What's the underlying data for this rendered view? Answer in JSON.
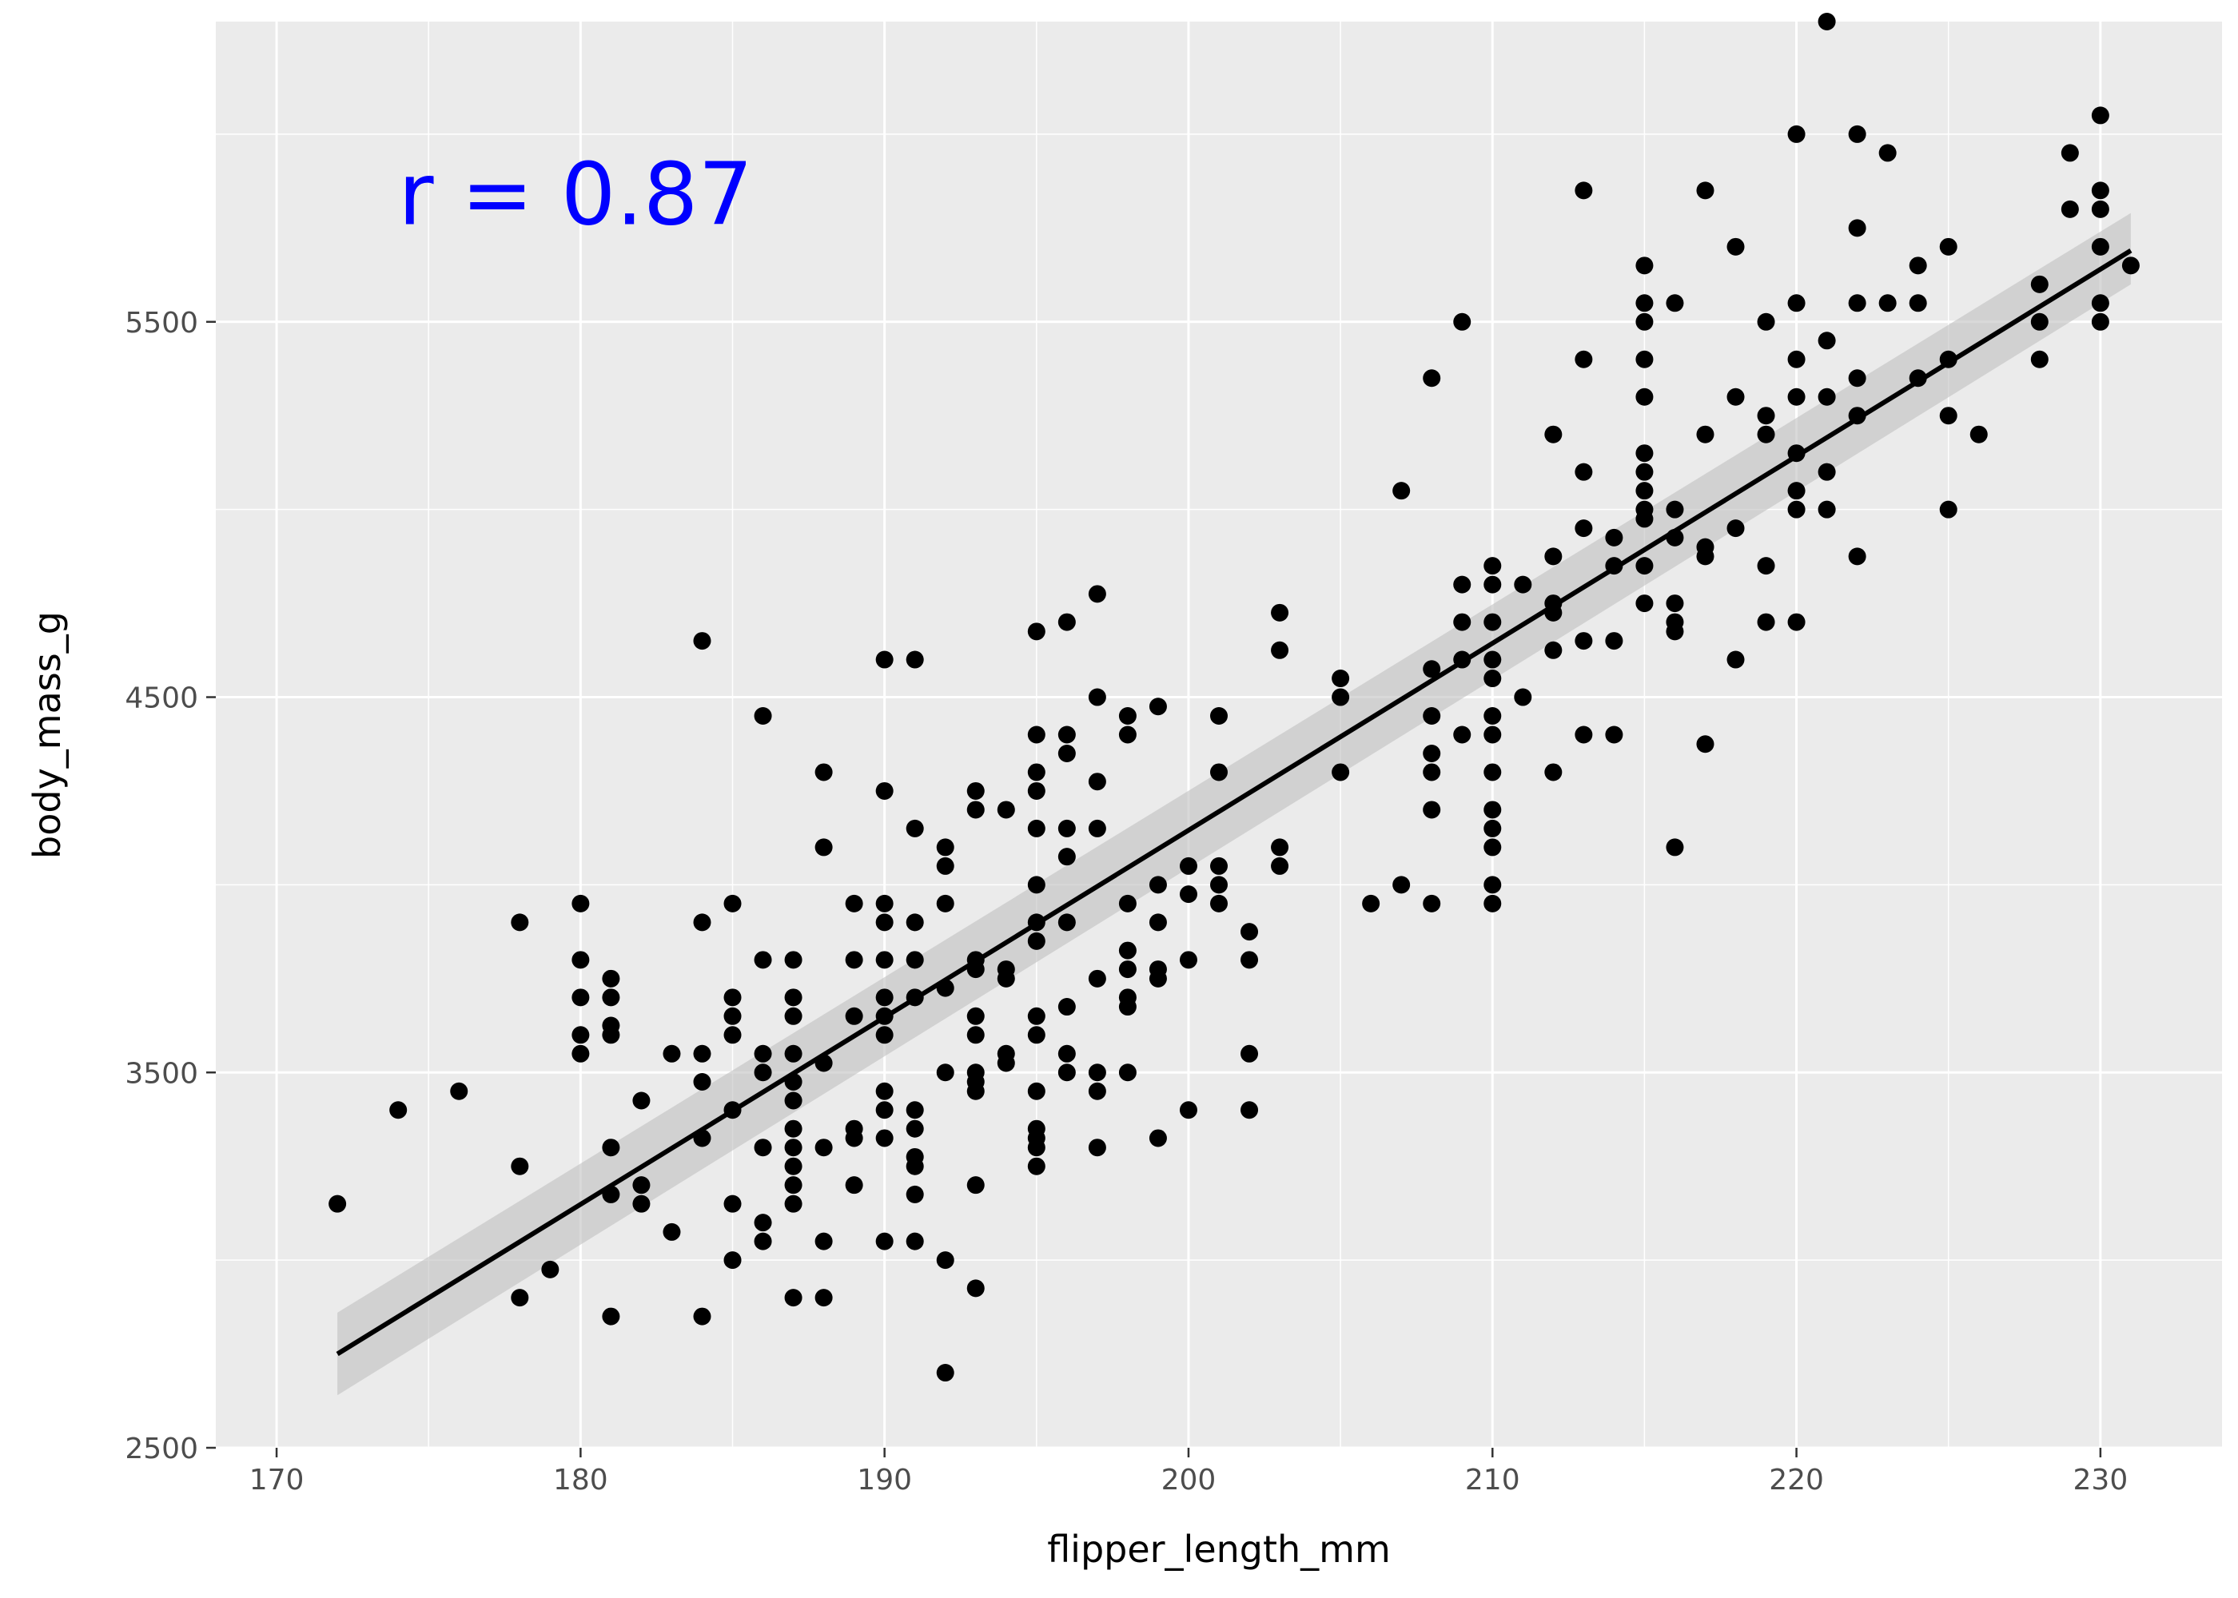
{
  "chart_data": {
    "type": "scatter",
    "xlabel": "flipper_length_mm",
    "ylabel": "body_mass_g",
    "xlim": [
      168,
      234
    ],
    "ylim": [
      2500,
      6300
    ],
    "x_ticks": [
      170,
      180,
      190,
      200,
      210,
      220,
      230
    ],
    "y_ticks": [
      2500,
      3500,
      4500,
      5500
    ],
    "x_tick_labels": [
      "170",
      "180",
      "190",
      "200",
      "210",
      "220",
      "230"
    ],
    "y_tick_labels": [
      "2500",
      "3500",
      "4500",
      "5500"
    ],
    "grid": true,
    "background": "#EBEBEB",
    "point_color": "#000000",
    "annotation": {
      "text": "r = 0.87",
      "color": "#0000FF",
      "x": 174,
      "y": 5760
    },
    "regression": {
      "method": "linear",
      "x_range": [
        172,
        231
      ],
      "y_at_start": 2750,
      "y_at_end": 5690,
      "band_lower_start": 2640,
      "band_upper_start": 2860,
      "band_lower_end": 5600,
      "band_upper_end": 5790,
      "line_color": "#000000",
      "band_color": "#BFBFBF"
    },
    "points": [
      [
        172,
        3150
      ],
      [
        174,
        3400
      ],
      [
        176,
        3450
      ],
      [
        178,
        3250
      ],
      [
        178,
        2900
      ],
      [
        178,
        3900
      ],
      [
        179,
        2975
      ],
      [
        180,
        3950
      ],
      [
        180,
        3800
      ],
      [
        180,
        3700
      ],
      [
        180,
        3600
      ],
      [
        180,
        3550
      ],
      [
        181,
        3300
      ],
      [
        181,
        3175
      ],
      [
        181,
        2850
      ],
      [
        181,
        3625
      ],
      [
        181,
        3600
      ],
      [
        181,
        3700
      ],
      [
        181,
        3750
      ],
      [
        182,
        3200
      ],
      [
        182,
        3150
      ],
      [
        182,
        3425
      ],
      [
        183,
        3075
      ],
      [
        183,
        3550
      ],
      [
        184,
        3325
      ],
      [
        184,
        2850
      ],
      [
        184,
        4650
      ],
      [
        184,
        3900
      ],
      [
        184,
        3550
      ],
      [
        184,
        3475
      ],
      [
        185,
        3700
      ],
      [
        185,
        3650
      ],
      [
        185,
        3600
      ],
      [
        185,
        3950
      ],
      [
        185,
        3400
      ],
      [
        185,
        3150
      ],
      [
        185,
        3000
      ],
      [
        186,
        3100
      ],
      [
        186,
        3050
      ],
      [
        186,
        3300
      ],
      [
        186,
        3500
      ],
      [
        186,
        3550
      ],
      [
        186,
        4450
      ],
      [
        186,
        3800
      ],
      [
        187,
        3800
      ],
      [
        187,
        3700
      ],
      [
        187,
        3650
      ],
      [
        187,
        3550
      ],
      [
        187,
        3475
      ],
      [
        187,
        3425
      ],
      [
        187,
        3350
      ],
      [
        187,
        3300
      ],
      [
        187,
        3250
      ],
      [
        187,
        3200
      ],
      [
        187,
        3150
      ],
      [
        187,
        2900
      ],
      [
        188,
        3300
      ],
      [
        188,
        4300
      ],
      [
        188,
        4100
      ],
      [
        188,
        3525
      ],
      [
        188,
        3050
      ],
      [
        188,
        2900
      ],
      [
        189,
        3950
      ],
      [
        189,
        3800
      ],
      [
        189,
        3650
      ],
      [
        189,
        3350
      ],
      [
        189,
        3325
      ],
      [
        189,
        3200
      ],
      [
        190,
        4600
      ],
      [
        190,
        4250
      ],
      [
        190,
        3950
      ],
      [
        190,
        3900
      ],
      [
        190,
        3800
      ],
      [
        190,
        3700
      ],
      [
        190,
        3650
      ],
      [
        190,
        3600
      ],
      [
        190,
        3450
      ],
      [
        190,
        3400
      ],
      [
        190,
        3325
      ],
      [
        190,
        3050
      ],
      [
        191,
        4600
      ],
      [
        191,
        4150
      ],
      [
        191,
        3900
      ],
      [
        191,
        3800
      ],
      [
        191,
        3700
      ],
      [
        191,
        3400
      ],
      [
        191,
        3350
      ],
      [
        191,
        3275
      ],
      [
        191,
        3250
      ],
      [
        191,
        3175
      ],
      [
        191,
        3050
      ],
      [
        192,
        4100
      ],
      [
        192,
        4050
      ],
      [
        192,
        3950
      ],
      [
        192,
        3725
      ],
      [
        192,
        3500
      ],
      [
        192,
        3000
      ],
      [
        192,
        2700
      ],
      [
        193,
        4250
      ],
      [
        193,
        4200
      ],
      [
        193,
        3800
      ],
      [
        193,
        3775
      ],
      [
        193,
        3650
      ],
      [
        193,
        3600
      ],
      [
        193,
        3500
      ],
      [
        193,
        3475
      ],
      [
        193,
        3450
      ],
      [
        193,
        3200
      ],
      [
        193,
        2925
      ],
      [
        194,
        4200
      ],
      [
        194,
        3775
      ],
      [
        194,
        3750
      ],
      [
        194,
        3550
      ],
      [
        194,
        3525
      ],
      [
        195,
        4675
      ],
      [
        195,
        4400
      ],
      [
        195,
        4300
      ],
      [
        195,
        4250
      ],
      [
        195,
        4150
      ],
      [
        195,
        4000
      ],
      [
        195,
        3900
      ],
      [
        195,
        3850
      ],
      [
        195,
        3650
      ],
      [
        195,
        3600
      ],
      [
        195,
        3450
      ],
      [
        195,
        3350
      ],
      [
        195,
        3325
      ],
      [
        195,
        3300
      ],
      [
        195,
        3250
      ],
      [
        196,
        4700
      ],
      [
        196,
        4400
      ],
      [
        196,
        4350
      ],
      [
        196,
        4150
      ],
      [
        196,
        4075
      ],
      [
        196,
        3900
      ],
      [
        196,
        3675
      ],
      [
        196,
        3550
      ],
      [
        196,
        3500
      ],
      [
        197,
        4775
      ],
      [
        197,
        4500
      ],
      [
        197,
        4275
      ],
      [
        197,
        4150
      ],
      [
        197,
        3750
      ],
      [
        197,
        3500
      ],
      [
        197,
        3450
      ],
      [
        197,
        3300
      ],
      [
        198,
        4450
      ],
      [
        198,
        4400
      ],
      [
        198,
        3950
      ],
      [
        198,
        3825
      ],
      [
        198,
        3775
      ],
      [
        198,
        3700
      ],
      [
        198,
        3675
      ],
      [
        198,
        3500
      ],
      [
        199,
        4475
      ],
      [
        199,
        4000
      ],
      [
        199,
        3900
      ],
      [
        199,
        3775
      ],
      [
        199,
        3750
      ],
      [
        199,
        3325
      ],
      [
        200,
        4050
      ],
      [
        200,
        3975
      ],
      [
        200,
        3800
      ],
      [
        200,
        3400
      ],
      [
        201,
        4450
      ],
      [
        201,
        4300
      ],
      [
        201,
        4050
      ],
      [
        201,
        4000
      ],
      [
        201,
        3950
      ],
      [
        202,
        3875
      ],
      [
        202,
        3800
      ],
      [
        202,
        3550
      ],
      [
        202,
        3400
      ],
      [
        203,
        4725
      ],
      [
        203,
        4625
      ],
      [
        203,
        4100
      ],
      [
        203,
        4050
      ],
      [
        205,
        4550
      ],
      [
        205,
        4500
      ],
      [
        205,
        4300
      ],
      [
        206,
        3950
      ],
      [
        207,
        5050
      ],
      [
        207,
        4000
      ],
      [
        208,
        5350
      ],
      [
        208,
        4575
      ],
      [
        208,
        4450
      ],
      [
        208,
        4350
      ],
      [
        208,
        4300
      ],
      [
        208,
        4200
      ],
      [
        208,
        3950
      ],
      [
        209,
        5500
      ],
      [
        209,
        4800
      ],
      [
        209,
        4700
      ],
      [
        209,
        4600
      ],
      [
        209,
        4400
      ],
      [
        210,
        4850
      ],
      [
        210,
        4800
      ],
      [
        210,
        4700
      ],
      [
        210,
        4600
      ],
      [
        210,
        4550
      ],
      [
        210,
        4450
      ],
      [
        210,
        4400
      ],
      [
        210,
        4300
      ],
      [
        210,
        4200
      ],
      [
        210,
        4150
      ],
      [
        210,
        4100
      ],
      [
        210,
        4000
      ],
      [
        210,
        3950
      ],
      [
        211,
        4800
      ],
      [
        211,
        4500
      ],
      [
        212,
        5200
      ],
      [
        212,
        4875
      ],
      [
        212,
        4750
      ],
      [
        212,
        4725
      ],
      [
        212,
        4625
      ],
      [
        212,
        4300
      ],
      [
        213,
        5850
      ],
      [
        213,
        5400
      ],
      [
        213,
        5100
      ],
      [
        213,
        4950
      ],
      [
        213,
        4650
      ],
      [
        213,
        4400
      ],
      [
        214,
        4925
      ],
      [
        214,
        4850
      ],
      [
        214,
        4650
      ],
      [
        214,
        4400
      ],
      [
        215,
        5650
      ],
      [
        215,
        5550
      ],
      [
        215,
        5500
      ],
      [
        215,
        5400
      ],
      [
        215,
        5300
      ],
      [
        215,
        5150
      ],
      [
        215,
        5100
      ],
      [
        215,
        5050
      ],
      [
        215,
        5000
      ],
      [
        215,
        4975
      ],
      [
        215,
        4850
      ],
      [
        215,
        4750
      ],
      [
        216,
        5550
      ],
      [
        216,
        5000
      ],
      [
        216,
        4925
      ],
      [
        216,
        4750
      ],
      [
        216,
        4700
      ],
      [
        216,
        4675
      ],
      [
        216,
        4100
      ],
      [
        217,
        5850
      ],
      [
        217,
        5200
      ],
      [
        217,
        4900
      ],
      [
        217,
        4875
      ],
      [
        217,
        4375
      ],
      [
        218,
        5700
      ],
      [
        218,
        5300
      ],
      [
        218,
        4950
      ],
      [
        218,
        4600
      ],
      [
        219,
        5500
      ],
      [
        219,
        5250
      ],
      [
        219,
        5200
      ],
      [
        219,
        4850
      ],
      [
        219,
        4700
      ],
      [
        220,
        6000
      ],
      [
        220,
        5550
      ],
      [
        220,
        5400
      ],
      [
        220,
        5300
      ],
      [
        220,
        5150
      ],
      [
        220,
        5050
      ],
      [
        220,
        5000
      ],
      [
        220,
        4700
      ],
      [
        221,
        6300
      ],
      [
        221,
        5450
      ],
      [
        221,
        5300
      ],
      [
        221,
        5100
      ],
      [
        221,
        5000
      ],
      [
        222,
        6000
      ],
      [
        222,
        5750
      ],
      [
        222,
        5550
      ],
      [
        222,
        5350
      ],
      [
        222,
        5250
      ],
      [
        222,
        4875
      ],
      [
        223,
        5950
      ],
      [
        223,
        5550
      ],
      [
        224,
        5650
      ],
      [
        224,
        5550
      ],
      [
        224,
        5350
      ],
      [
        225,
        5700
      ],
      [
        225,
        5400
      ],
      [
        225,
        5250
      ],
      [
        225,
        5000
      ],
      [
        226,
        5200
      ],
      [
        228,
        5600
      ],
      [
        228,
        5500
      ],
      [
        228,
        5400
      ],
      [
        229,
        5950
      ],
      [
        229,
        5800
      ],
      [
        230,
        6050
      ],
      [
        230,
        5850
      ],
      [
        230,
        5800
      ],
      [
        230,
        5700
      ],
      [
        230,
        5550
      ],
      [
        230,
        5500
      ],
      [
        231,
        5650
      ]
    ]
  }
}
